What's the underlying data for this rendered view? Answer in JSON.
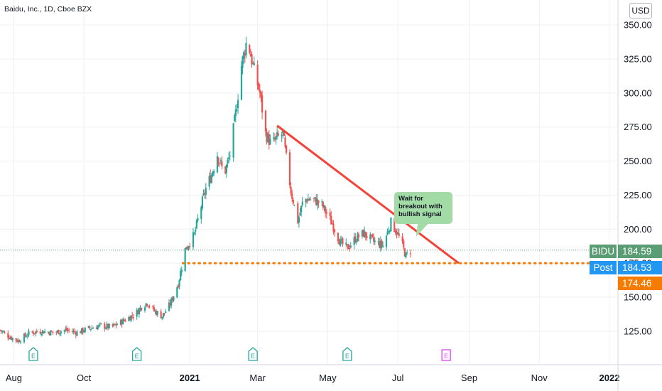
{
  "header": {
    "symbol_title": "Baidu, Inc., 1D, Cboe BZX",
    "currency": "USD"
  },
  "annotation": {
    "text_lines": [
      "Wait for",
      "breakout with",
      "bullish signal"
    ],
    "color": "#a3dba6"
  },
  "price_tags": {
    "bidu_label": "BIDU",
    "bidu_value": "184.59",
    "bidu_color": "#5a9d74",
    "post_label": "Post",
    "post_value": "184.53",
    "post_color": "#2196f3",
    "support_value": "174.46",
    "support_color": "#f57c00"
  },
  "chart_data": {
    "type": "candlestick",
    "title": "Baidu, Inc., 1D, Cboe BZX",
    "y_axis": {
      "ylim": [
        100,
        360
      ],
      "tick_labels": [
        "350.00",
        "325.00",
        "300.00",
        "275.00",
        "250.00",
        "225.00",
        "200.00",
        "175.00",
        "150.00",
        "125.00"
      ],
      "ticks": [
        350,
        325,
        300,
        275,
        250,
        225,
        200,
        175,
        150,
        125
      ]
    },
    "x_axis": {
      "tick_labels": [
        "Aug",
        "Oct",
        "2021",
        "Mar",
        "May",
        "Jul",
        "Sep",
        "Nov",
        "2022"
      ],
      "bold_labels": [
        "2021",
        "2022"
      ]
    },
    "grid": true,
    "close_series": {
      "name": "BIDU",
      "points": [
        [
          "2020-07-20",
          126
        ],
        [
          "2020-07-28",
          121
        ],
        [
          "2020-08-05",
          118
        ],
        [
          "2020-08-15",
          124
        ],
        [
          "2020-08-25",
          125
        ],
        [
          "2020-09-05",
          124
        ],
        [
          "2020-09-15",
          126
        ],
        [
          "2020-09-25",
          124
        ],
        [
          "2020-10-05",
          127
        ],
        [
          "2020-10-15",
          129
        ],
        [
          "2020-10-25",
          128
        ],
        [
          "2020-11-05",
          133
        ],
        [
          "2020-11-15",
          138
        ],
        [
          "2020-11-20",
          143
        ],
        [
          "2020-11-25",
          146
        ],
        [
          "2020-12-01",
          140
        ],
        [
          "2020-12-08",
          136
        ],
        [
          "2020-12-15",
          145
        ],
        [
          "2020-12-22",
          160
        ],
        [
          "2020-12-28",
          185
        ],
        [
          "2021-01-05",
          196
        ],
        [
          "2021-01-10",
          214
        ],
        [
          "2021-01-15",
          230
        ],
        [
          "2021-01-20",
          240
        ],
        [
          "2021-01-25",
          255
        ],
        [
          "2021-01-31",
          240
        ],
        [
          "2021-02-05",
          255
        ],
        [
          "2021-02-10",
          285
        ],
        [
          "2021-02-15",
          320
        ],
        [
          "2021-02-20",
          340
        ],
        [
          "2021-02-25",
          320
        ],
        [
          "2021-03-03",
          300
        ],
        [
          "2021-03-08",
          270
        ],
        [
          "2021-03-13",
          262
        ],
        [
          "2021-03-18",
          267
        ],
        [
          "2021-03-23",
          270
        ],
        [
          "2021-03-30",
          228
        ],
        [
          "2021-04-05",
          206
        ],
        [
          "2021-04-10",
          222
        ],
        [
          "2021-04-17",
          222
        ],
        [
          "2021-04-25",
          219
        ],
        [
          "2021-05-05",
          204
        ],
        [
          "2021-05-12",
          190
        ],
        [
          "2021-05-18",
          186
        ],
        [
          "2021-05-25",
          193
        ],
        [
          "2021-06-01",
          197
        ],
        [
          "2021-06-10",
          191
        ],
        [
          "2021-06-18",
          188
        ],
        [
          "2021-06-25",
          205
        ],
        [
          "2021-06-30",
          198
        ],
        [
          "2021-07-05",
          188
        ],
        [
          "2021-07-08",
          180
        ],
        [
          "2021-07-12",
          184.59
        ]
      ]
    },
    "lines": [
      {
        "name": "resistance-trendline",
        "color": "#f44336",
        "from": [
          "2021-03-18",
          276
        ],
        "to": [
          "2021-08-23",
          175
        ]
      },
      {
        "name": "support-line",
        "color": "#f57c00",
        "style": "dotted",
        "from": [
          "2020-12-26",
          175
        ],
        "to": [
          "2021-12-31",
          175
        ]
      }
    ],
    "annotations": [
      {
        "text": "Wait for breakout with bullish signal",
        "at": [
          "2021-06-28",
          210
        ]
      }
    ],
    "earnings_markers": [
      {
        "date": "2020-08-18",
        "label": "E"
      },
      {
        "date": "2020-11-16",
        "label": "E"
      },
      {
        "date": "2021-02-25",
        "label": "E"
      },
      {
        "date": "2021-05-18",
        "label": "E"
      },
      {
        "date": "2021-08-12",
        "label": "E",
        "upcoming": true
      }
    ],
    "current_price": 184.59,
    "post_market_price": 184.53,
    "support_level": 174.46
  }
}
